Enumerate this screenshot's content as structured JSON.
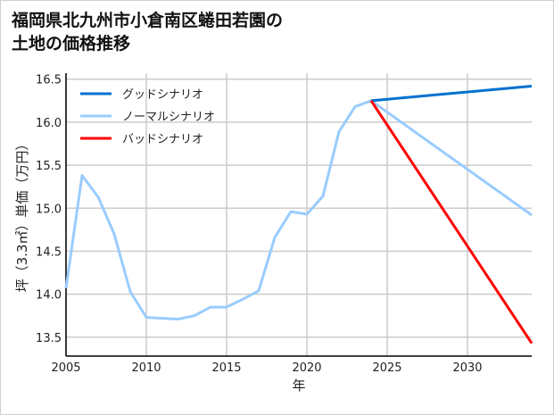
{
  "chart_data": {
    "type": "line",
    "title_lines": [
      "福岡県北九州市小倉南区蜷田若園の",
      "土地の価格推移"
    ],
    "xlabel": "年",
    "ylabel": "坪（3.3㎡）単価（万円）",
    "xlim": [
      2005,
      2034
    ],
    "ylim": [
      13.28,
      16.57
    ],
    "xticks": [
      2005,
      2010,
      2015,
      2020,
      2025,
      2030
    ],
    "yticks": [
      13.5,
      14.0,
      14.5,
      15.0,
      15.5,
      16.0,
      16.5
    ],
    "ytick_labels": [
      "13.5",
      "14.0",
      "14.5",
      "15.0",
      "15.5",
      "16.0",
      "16.5"
    ],
    "grid": true,
    "legend_position": "top-left",
    "series": [
      {
        "name": "グッドシナリオ",
        "color": "#0072cf",
        "x": [
          2024,
          2034
        ],
        "y": [
          16.25,
          16.42
        ]
      },
      {
        "name": "ノーマルシナリオ",
        "color": "#99ccff",
        "x": [
          2005,
          2006,
          2007,
          2008,
          2009,
          2010,
          2011,
          2012,
          2013,
          2014,
          2015,
          2016,
          2017,
          2018,
          2019,
          2020,
          2021,
          2022,
          2023,
          2024,
          2034
        ],
        "y": [
          14.07,
          15.38,
          15.13,
          14.7,
          14.03,
          13.73,
          13.72,
          13.71,
          13.75,
          13.85,
          13.85,
          13.94,
          14.04,
          14.66,
          14.96,
          14.93,
          15.14,
          15.89,
          16.18,
          16.25,
          14.92
        ]
      },
      {
        "name": "バッドシナリオ",
        "color": "#ff0000",
        "x": [
          2024,
          2034
        ],
        "y": [
          16.25,
          13.43
        ]
      }
    ]
  }
}
